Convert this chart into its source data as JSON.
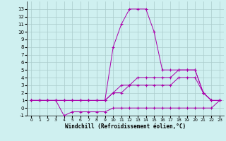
{
  "title": "",
  "xlabel": "Windchill (Refroidissement éolien,°C)",
  "background_color": "#cff0f0",
  "grid_color": "#aacccc",
  "line_color": "#aa00aa",
  "x_hours": [
    0,
    1,
    2,
    3,
    4,
    5,
    6,
    7,
    8,
    9,
    10,
    11,
    12,
    13,
    14,
    15,
    16,
    17,
    18,
    19,
    20,
    21,
    22,
    23
  ],
  "series_spike": [
    1,
    1,
    1,
    1,
    1,
    1,
    1,
    1,
    1,
    1,
    8,
    11,
    13,
    13,
    13,
    10,
    5,
    5,
    5,
    5,
    5,
    2,
    1,
    1
  ],
  "series_slope1": [
    1,
    1,
    1,
    1,
    1,
    1,
    1,
    1,
    1,
    1,
    2,
    3,
    3,
    4,
    4,
    4,
    4,
    4,
    5,
    5,
    5,
    2,
    1,
    1
  ],
  "series_slope2": [
    1,
    1,
    1,
    1,
    1,
    1,
    1,
    1,
    1,
    1,
    2,
    2,
    3,
    3,
    3,
    3,
    3,
    3,
    4,
    4,
    4,
    2,
    1,
    1
  ],
  "series_flat": [
    1,
    1,
    1,
    1,
    -1,
    -0.5,
    -0.5,
    -0.5,
    -0.5,
    -0.5,
    0,
    0,
    0,
    0,
    0,
    0,
    0,
    0,
    0,
    0,
    0,
    0,
    0,
    1
  ],
  "ylim": [
    -1,
    14
  ],
  "yticks": [
    -1,
    0,
    1,
    2,
    3,
    4,
    5,
    6,
    7,
    8,
    9,
    10,
    11,
    12,
    13
  ],
  "xlim": [
    -0.5,
    23.5
  ]
}
